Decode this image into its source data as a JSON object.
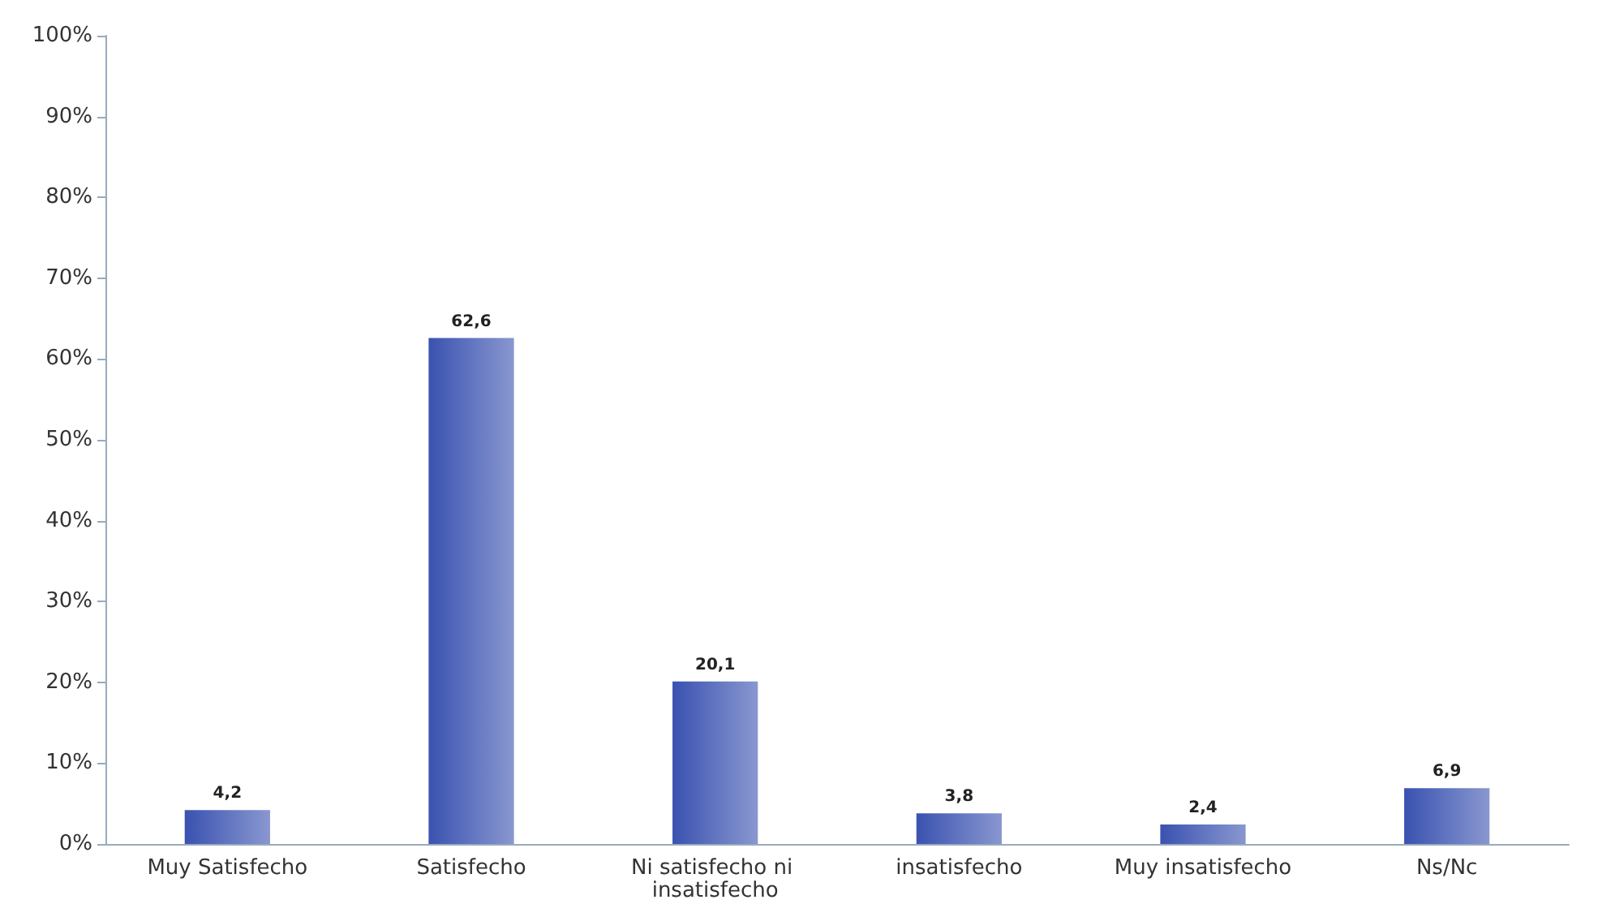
{
  "chart_data": {
    "type": "bar",
    "categories": [
      "Muy Satisfecho",
      "Satisfecho",
      "Ni satisfecho ni insatisfecho",
      "insatisfecho",
      "Muy insatisfecho",
      "Ns/Nc"
    ],
    "values": [
      4.2,
      62.6,
      20.1,
      3.8,
      2.4,
      6.9
    ],
    "value_labels": [
      "4,2",
      "62,6",
      "20,1",
      "3,8",
      "2,4",
      "6,9"
    ],
    "color": "#3a52b0",
    "ylim": [
      0,
      100
    ],
    "yticks": [
      {
        "value": 0,
        "label": "0%"
      },
      {
        "value": 10,
        "label": "10%"
      },
      {
        "value": 20,
        "label": "20%"
      },
      {
        "value": 30,
        "label": "30%"
      },
      {
        "value": 40,
        "label": "40%"
      },
      {
        "value": 50,
        "label": "50%"
      },
      {
        "value": 60,
        "label": "60%"
      },
      {
        "value": 70,
        "label": "70%"
      },
      {
        "value": 80,
        "label": "80%"
      },
      {
        "value": 90,
        "label": "90%"
      },
      {
        "value": 100,
        "label": "100%"
      }
    ],
    "grid": false
  }
}
